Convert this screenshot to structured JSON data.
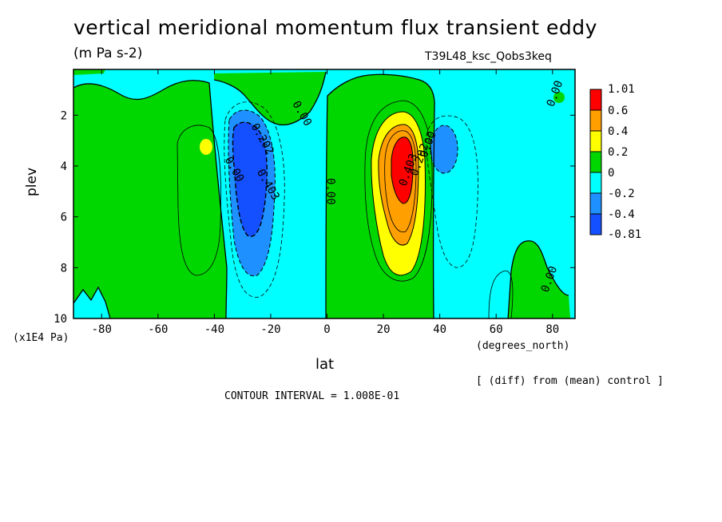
{
  "title": "vertical meridional momentum flux transient eddy",
  "units": "(m Pa s-2)",
  "run_name": "T39L48_ksc_Qobs3keq",
  "x_unit": "(degrees_north)",
  "y_unit": "(x1E4 Pa)",
  "diff_note": "[ (diff) from (mean) control ]",
  "contour_interval": "CONTOUR INTERVAL = 1.008E-01",
  "colors": {
    "red": "#ff0000",
    "orange": "#ff9f00",
    "yellow": "#ffff00",
    "green": "#00d700",
    "cyan": "#00ffff",
    "midblue": "#1e90ff",
    "blue": "#1450ff"
  },
  "chart_data": {
    "type": "heatmap",
    "title": "vertical meridional momentum flux transient eddy",
    "xlabel": "lat",
    "ylabel": "plev",
    "xlim": [
      -90,
      88
    ],
    "ylim": [
      10,
      0.2
    ],
    "x_ticks": [
      -80,
      -60,
      -40,
      -20,
      0,
      20,
      40,
      60,
      80
    ],
    "y_ticks": [
      2,
      4,
      6,
      8,
      10
    ],
    "colorbar": {
      "labels": [
        "1.01",
        "0.6",
        "0.4",
        "0.2",
        "0",
        "-0.2",
        "-0.4",
        "-0.81"
      ],
      "bands": [
        {
          "lo": 0.6,
          "hi": 1.01,
          "color": "#ff0000"
        },
        {
          "lo": 0.4,
          "hi": 0.6,
          "color": "#ff9f00"
        },
        {
          "lo": 0.2,
          "hi": 0.4,
          "color": "#ffff00"
        },
        {
          "lo": 0.0,
          "hi": 0.2,
          "color": "#00d700"
        },
        {
          "lo": -0.2,
          "hi": 0.0,
          "color": "#00ffff"
        },
        {
          "lo": -0.4,
          "hi": -0.2,
          "color": "#1e90ff"
        },
        {
          "lo": -0.81,
          "hi": -0.4,
          "color": "#1450ff"
        }
      ]
    },
    "contour_labels": [
      {
        "text": "0.00",
        "lat": 82,
        "plev": 1.2
      },
      {
        "text": "0.00",
        "lat": -10,
        "plev": 2.0
      },
      {
        "text": "0.00",
        "lat": 0,
        "plev": 5.0
      },
      {
        "text": "0.00",
        "lat": -34,
        "plev": 4.2
      },
      {
        "text": "0.00",
        "lat": 37,
        "plev": 3.2
      },
      {
        "text": "0.00",
        "lat": 80,
        "plev": 8.5
      },
      {
        "text": "0.202",
        "lat": -24,
        "plev": 3.0
      },
      {
        "text": "0.403",
        "lat": -22,
        "plev": 4.8
      },
      {
        "text": "0.403",
        "lat": 30,
        "plev": 4.2
      },
      {
        "text": "0.202",
        "lat": 34,
        "plev": 3.8
      }
    ]
  }
}
